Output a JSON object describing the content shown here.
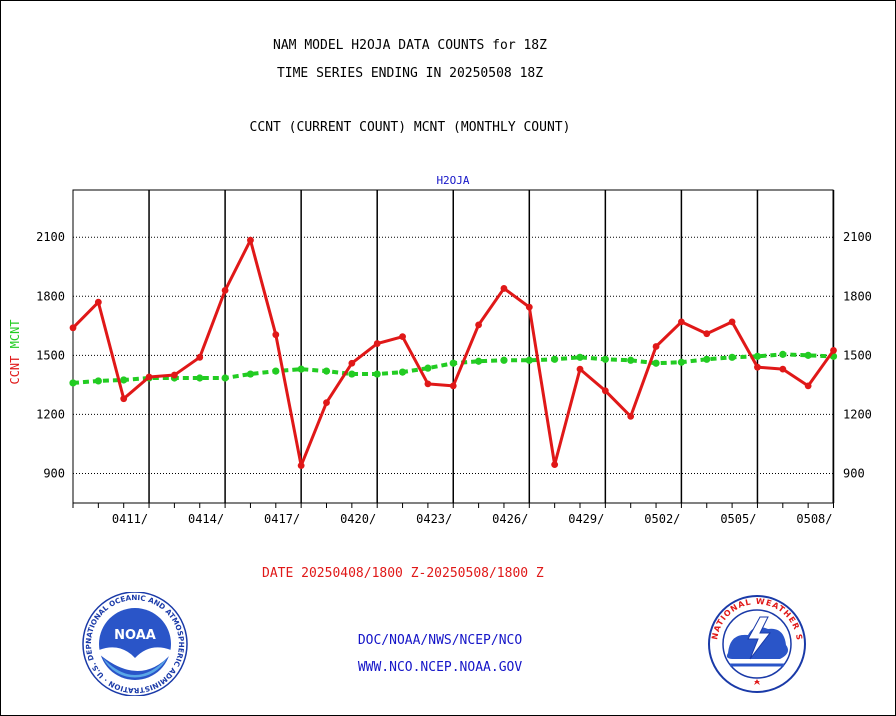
{
  "header": {
    "line1": "NAM MODEL H2OJA DATA COUNTS for 18Z",
    "line2": "TIME SERIES ENDING IN 20250508 18Z",
    "line3": "CCNT (CURRENT COUNT) MCNT (MONTHLY COUNT)"
  },
  "footer": {
    "date_range": "DATE 20250408/1800 Z-20250508/1800 Z",
    "org_path": "DOC/NOAA/NWS/NCEP/NCO",
    "website": "WWW.NCO.NCEP.NOAA.GOV"
  },
  "logos": {
    "noaa": "NOAA",
    "noaa_ring": "NATIONAL OCEANIC AND ATMOSPHERIC ADMINISTRATION · U.S. DEPARTMENT OF COMMERCE ·",
    "nws_ring": "NATIONAL WEATHER SERVICE"
  },
  "chart_data": {
    "type": "line",
    "title": "H2OJA",
    "ylabel_series": [
      {
        "text": "CCNT",
        "color": "#e01818"
      },
      {
        "text": "MCNT",
        "color": "#22cc22"
      }
    ],
    "x": [
      "0408",
      "0409",
      "0410",
      "0411",
      "0412",
      "0413",
      "0414",
      "0415",
      "0416",
      "0417",
      "0418",
      "0419",
      "0420",
      "0421",
      "0422",
      "0423",
      "0424",
      "0425",
      "0426",
      "0427",
      "0428",
      "0429",
      "0430",
      "0501",
      "0502",
      "0503",
      "0504",
      "0505",
      "0506",
      "0507",
      "0508"
    ],
    "xtick_labels": [
      "0411/",
      "0414/",
      "0417/",
      "0420/",
      "0423/",
      "0426/",
      "0429/",
      "0502/",
      "0505/",
      "0508/"
    ],
    "yticks": [
      900,
      1200,
      1500,
      1800,
      2100
    ],
    "ylim": [
      750,
      2340
    ],
    "grid": true,
    "series": [
      {
        "name": "CCNT",
        "color": "#e01818",
        "values": [
          1640,
          1770,
          1280,
          1390,
          1400,
          1490,
          1830,
          2085,
          1605,
          940,
          1260,
          1460,
          1560,
          1595,
          1355,
          1345,
          1655,
          1840,
          1745,
          945,
          1430,
          1320,
          1190,
          1545,
          1670,
          1610,
          1670,
          1440,
          1430,
          1345,
          1525
        ]
      },
      {
        "name": "MCNT",
        "color": "#22cc22",
        "values": [
          1360,
          1370,
          1375,
          1385,
          1385,
          1385,
          1385,
          1405,
          1420,
          1430,
          1420,
          1405,
          1405,
          1415,
          1435,
          1460,
          1470,
          1475,
          1475,
          1480,
          1490,
          1480,
          1475,
          1460,
          1465,
          1480,
          1490,
          1495,
          1505,
          1500,
          1495
        ]
      }
    ]
  }
}
